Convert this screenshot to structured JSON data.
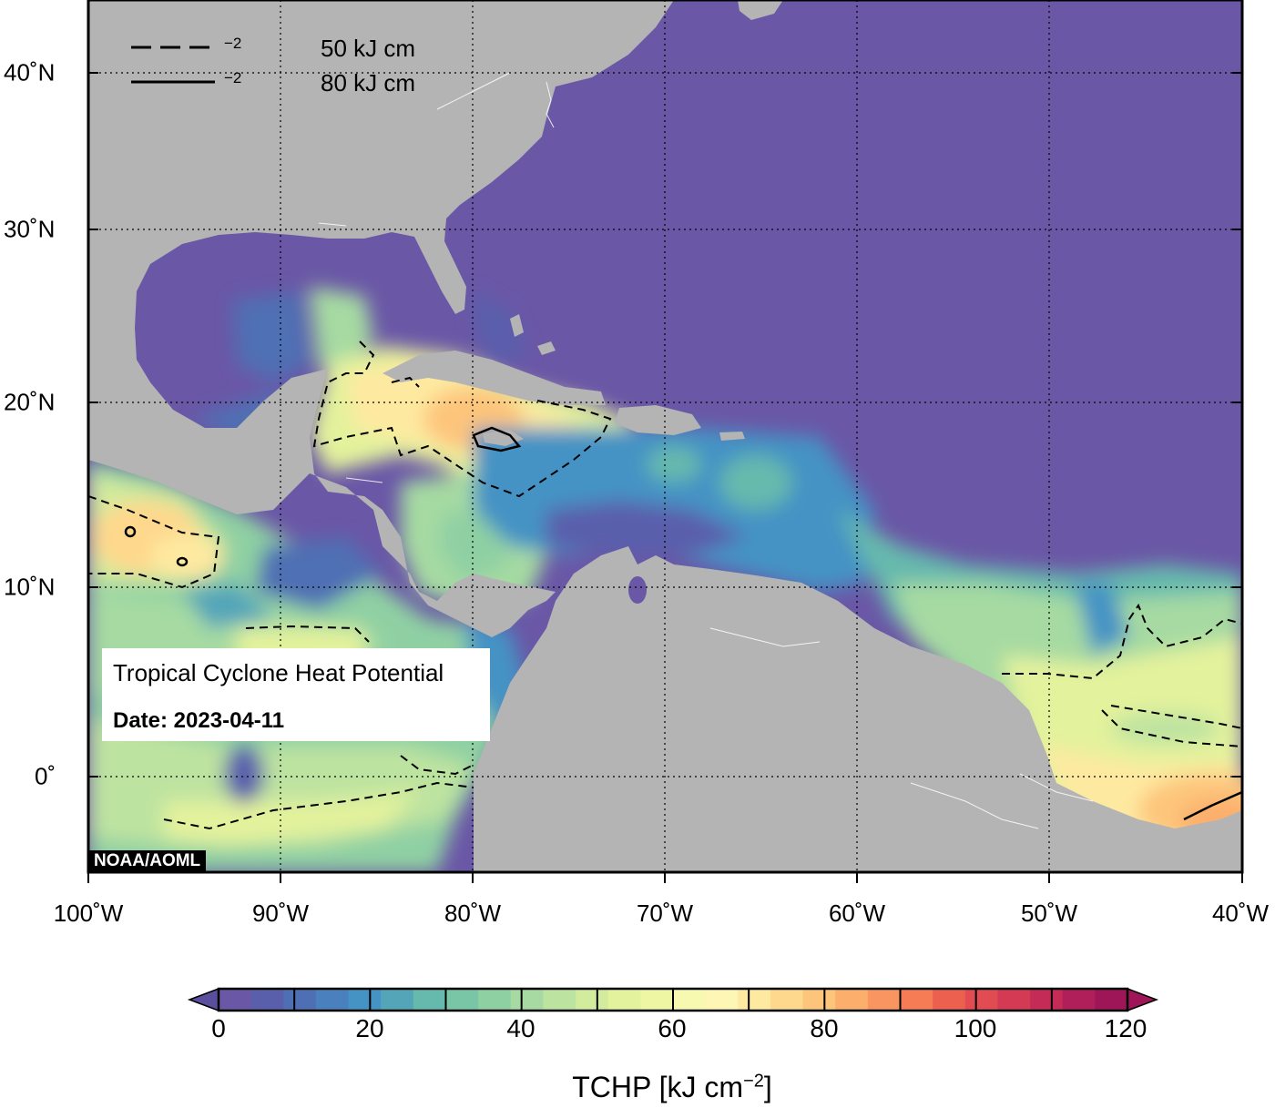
{
  "legend": {
    "dashed_label": "50 kJ cm",
    "solid_label": "80 kJ cm",
    "unit_exp": "−2"
  },
  "info": {
    "title": "Tropical Cyclone Heat Potential",
    "date": "Date: 2023-04-11"
  },
  "credit": "NOAA/AOML",
  "axes": {
    "x_ticks": [
      "100˚W",
      "90˚W",
      "80˚W",
      "70˚W",
      "60˚W",
      "50˚W",
      "40˚W"
    ],
    "y_ticks": [
      "40˚N",
      "30˚N",
      "20˚N",
      "10˚N",
      "0˚"
    ]
  },
  "colorbar": {
    "ticks": [
      "0",
      "20",
      "40",
      "60",
      "80",
      "100",
      "120"
    ],
    "title_main": "TCHP [kJ cm",
    "title_exp": "−2",
    "title_end": "]",
    "colors": [
      "#6a57a6",
      "#5a5fac",
      "#4f6fb4",
      "#4a80bd",
      "#4593c4",
      "#55a5b9",
      "#66b9ad",
      "#79c6a6",
      "#8fd0a3",
      "#a6daa2",
      "#bde3a0",
      "#d2eb9d",
      "#e3f29c",
      "#eef6a3",
      "#f7f9b0",
      "#fdf6b4",
      "#fee9a0",
      "#fed88c",
      "#fdc57b",
      "#fcae6c",
      "#f99560",
      "#f57c55",
      "#ec6050",
      "#e04c52",
      "#d43a54",
      "#c42c57",
      "#b11f5a",
      "#9e1558"
    ]
  },
  "land_color": "#b4b4b4",
  "ocean_base_color": "#6a57a6"
}
